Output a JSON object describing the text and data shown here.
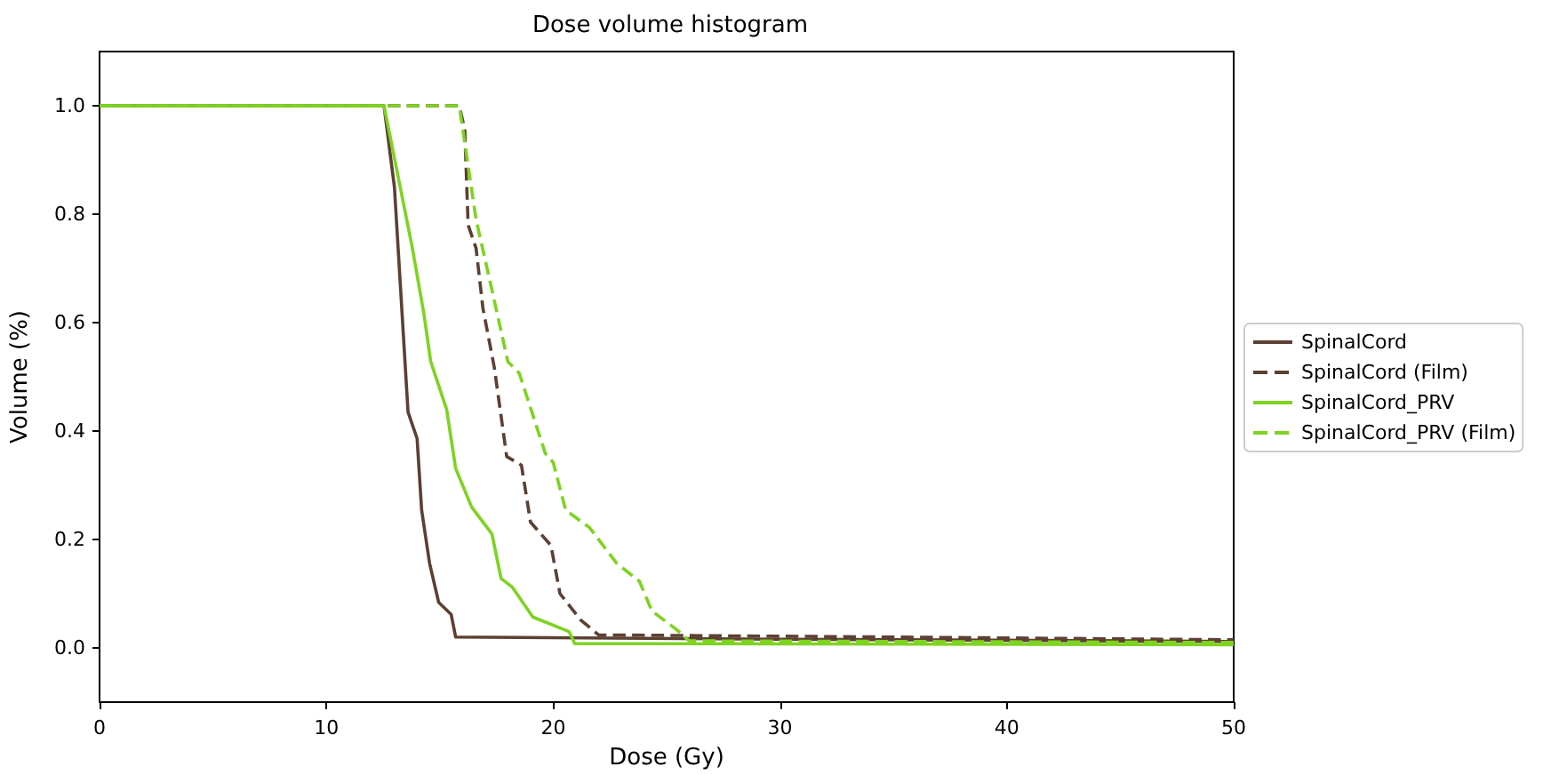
{
  "chart_data": {
    "type": "line",
    "title": "Dose volume histogram",
    "xlabel": "Dose (Gy)",
    "ylabel": "Volume (%)",
    "xlim": [
      0,
      50
    ],
    "xticks": [
      0,
      10,
      20,
      30,
      40,
      50
    ],
    "ylim": [
      -0.1,
      1.1
    ],
    "yticks": [
      {
        "value": 0,
        "label": "0.0"
      },
      {
        "value": 0.2,
        "label": "0.2"
      },
      {
        "value": 0.4,
        "label": "0.4"
      },
      {
        "value": 0.6,
        "label": "0.6"
      },
      {
        "value": 0.8,
        "label": "0.8"
      },
      {
        "value": 1,
        "label": "1.0"
      }
    ],
    "grid": false,
    "legend": "right",
    "marker": "none",
    "series": [
      {
        "name": "SpinalCord",
        "color": "#5c4033",
        "line_style": "solid",
        "x": [
          0,
          12.54,
          13.0,
          13.6,
          14.0,
          14.2,
          14.55,
          14.95,
          15.5,
          15.7,
          30,
          50
        ],
        "values": [
          1,
          1,
          0.85,
          0.435,
          0.386,
          0.254,
          0.156,
          0.084,
          0.062,
          0.02,
          0.016,
          0.012
        ]
      },
      {
        "name": "SpinalCord (Film)",
        "color": "#5c4033",
        "line_style": "dashed",
        "x": [
          0,
          15.86,
          16.1,
          16.25,
          16.6,
          16.9,
          17.4,
          17.95,
          18.6,
          19.0,
          19.9,
          20.3,
          21.2,
          22.0,
          35,
          50
        ],
        "values": [
          1,
          1,
          0.956,
          0.78,
          0.737,
          0.627,
          0.518,
          0.353,
          0.337,
          0.232,
          0.189,
          0.1,
          0.052,
          0.024,
          0.02,
          0.015
        ]
      },
      {
        "name": "SpinalCord_PRV",
        "color": "#7ed321",
        "line_style": "solid",
        "x": [
          0,
          12.54,
          13.77,
          14.3,
          14.6,
          15.3,
          15.7,
          16.4,
          17.3,
          17.7,
          18.2,
          19.1,
          20.7,
          20.95,
          50
        ],
        "values": [
          1,
          1,
          0.742,
          0.616,
          0.528,
          0.44,
          0.331,
          0.26,
          0.21,
          0.128,
          0.112,
          0.057,
          0.03,
          0.008,
          0.006
        ]
      },
      {
        "name": "SpinalCord_PRV (Film)",
        "color": "#7ed321",
        "line_style": "dashed",
        "x": [
          0,
          15.86,
          16.6,
          17.3,
          18.0,
          18.5,
          19.65,
          20.0,
          20.55,
          21.6,
          22.8,
          23.8,
          24.35,
          25.4,
          26.0,
          50
        ],
        "values": [
          1,
          1,
          0.79,
          0.66,
          0.528,
          0.507,
          0.359,
          0.342,
          0.254,
          0.222,
          0.156,
          0.123,
          0.068,
          0.035,
          0.013,
          0.01
        ]
      }
    ]
  }
}
